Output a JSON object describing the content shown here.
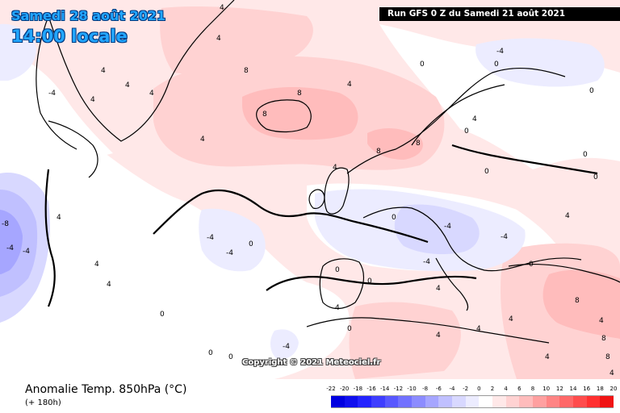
{
  "header": {
    "date": "Samedi 28 août 2021",
    "time": "14:00 locale",
    "run": "Run GFS 0 Z du Samedi 21 août 2021"
  },
  "copyright": "Copyright © 2021 Meteociel.fr",
  "footer": {
    "title": "Anomalie Temp. 850hPa (°C)",
    "lead": "(+ 180h)"
  },
  "scale": {
    "labels": [
      "-22",
      "-20",
      "-18",
      "-16",
      "-14",
      "-12",
      "-10",
      "-8",
      "-6",
      "-4",
      "-2",
      "0",
      "2",
      "4",
      "6",
      "8",
      "10",
      "12",
      "14",
      "16",
      "18",
      "20"
    ],
    "colors": [
      "#0000e0",
      "#1010ee",
      "#2424ff",
      "#3e3eff",
      "#5858ff",
      "#7272ff",
      "#8c8cff",
      "#a6a6ff",
      "#c0c0ff",
      "#d8d8ff",
      "#ececff",
      "#ffffff",
      "#ffe8e8",
      "#ffd2d2",
      "#ffbcbc",
      "#ffa0a0",
      "#ff8484",
      "#ff6868",
      "#ff4c4c",
      "#ff3030",
      "#f01414"
    ]
  },
  "map": {
    "colors": {
      "white": "#ffffff",
      "pale_red": "#ffe8e8",
      "light_red": "#ffd2d2",
      "red": "#ffbcbc",
      "deep_red": "#ffa0a0",
      "pale_blue": "#ececff",
      "light_blue": "#d8d8ff",
      "blue": "#c0c0ff",
      "deep_blue": "#a6a6ff",
      "navy": "#8c8cff",
      "outline": "#000000"
    },
    "labels": {
      "l1": "4",
      "l2": "4",
      "l3": "4",
      "l4": "4",
      "l5": "4",
      "l6": "4",
      "l7": "4",
      "l8": "8",
      "l9": "8",
      "l10": "8",
      "l11": "8",
      "l12": "8",
      "l13": "4",
      "l14": "4",
      "l15": "4",
      "l16": "4",
      "l17": "4",
      "l18": "0",
      "l19": "0",
      "l20": "0",
      "l21": "0",
      "l22": "0",
      "l23": "0",
      "l24": "0",
      "l25": "0",
      "l26": "0",
      "l27": "0",
      "l28": "0",
      "l29": "0",
      "l30": "-4",
      "l31": "-4",
      "l32": "-4",
      "l33": "-4",
      "l34": "-4",
      "l35": "-4",
      "l36": "-4",
      "l37": "-8",
      "l38": "-4",
      "l39": "-4",
      "l40": "4",
      "l41": "4",
      "l42": "4",
      "l43": "4",
      "l44": "4",
      "l45": "4",
      "l46": "8",
      "l47": "8",
      "l48": "8",
      "l49": "4",
      "l50": "4",
      "l51": "0",
      "l52": "0",
      "l53": "0",
      "l54": "4",
      "l55": "-4",
      "l56": "4",
      "l57": "0"
    }
  }
}
